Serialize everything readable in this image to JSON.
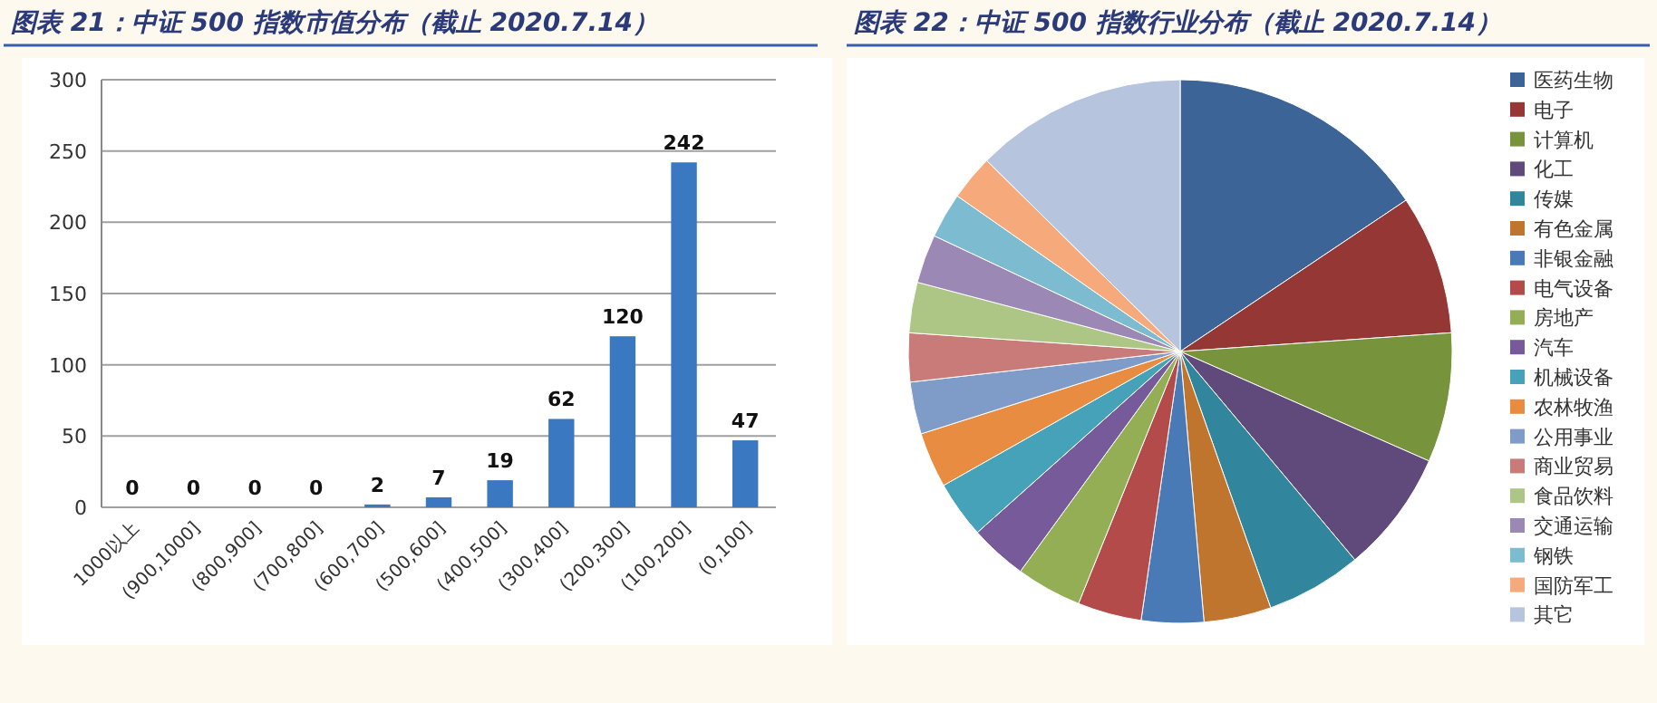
{
  "chart_data": [
    {
      "type": "bar",
      "title": "图表 21：中证 500 指数市值分布（截止 2020.7.14）",
      "categories": [
        "1000以上",
        "(900,1000]",
        "(800,900]",
        "(700,800]",
        "(600,700]",
        "(500,600]",
        "(400,500]",
        "(300,400]",
        "(200,300]",
        "(100,200]",
        "(0,100]"
      ],
      "values": [
        0,
        0,
        0,
        0,
        2,
        7,
        19,
        62,
        120,
        242,
        47
      ],
      "color": "#3a78c2",
      "ylim": [
        0,
        300
      ],
      "yticks": [
        0,
        50,
        100,
        150,
        200,
        250,
        300
      ],
      "grid": "y",
      "data_labels": true
    },
    {
      "type": "pie",
      "title": "图表 22：中证 500 指数行业分布（截止 2020.7.14）",
      "categories": [
        "医药生物",
        "电子",
        "计算机",
        "化工",
        "传媒",
        "有色金属",
        "非银金融",
        "电气设备",
        "房地产",
        "汽车",
        "机械设备",
        "农林牧渔",
        "公用事业",
        "商业贸易",
        "食品饮料",
        "交通运输",
        "钢铁",
        "国防军工",
        "其它"
      ],
      "values": [
        15.6,
        8.3,
        7.7,
        7.3,
        5.7,
        4.0,
        3.7,
        3.8,
        3.9,
        3.4,
        3.4,
        3.3,
        3.1,
        2.9,
        3.0,
        2.9,
        2.7,
        2.7,
        12.6
      ],
      "colors": [
        "#3c6496",
        "#953735",
        "#77933c",
        "#604a7b",
        "#31859c",
        "#c0752f",
        "#4a7ab5",
        "#b24b49",
        "#93ae54",
        "#775a9a",
        "#45a2b9",
        "#e78c40",
        "#7f9bc8",
        "#c97b7a",
        "#adc685",
        "#9c88b4",
        "#7cbbd0",
        "#f6a97b",
        "#b6c4de"
      ],
      "legend": "right"
    }
  ]
}
